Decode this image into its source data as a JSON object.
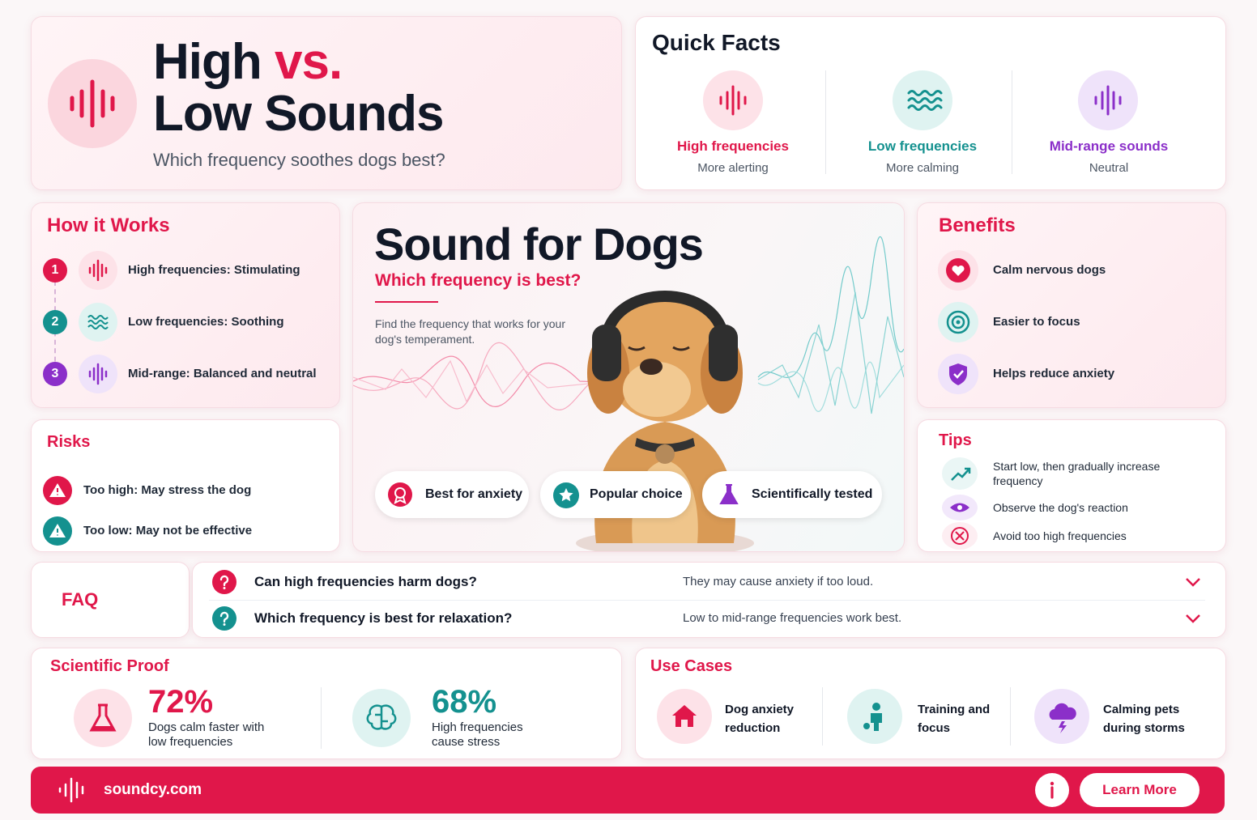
{
  "header": {
    "title_start": "High",
    "title_accent": "vs.",
    "title_end": "Low Sounds",
    "subtitle": "Which frequency soothes dogs best?"
  },
  "quick_facts": {
    "title": "Quick Facts",
    "items": [
      {
        "label": "High frequencies",
        "note": "More alerting"
      },
      {
        "label": "Low frequencies",
        "note": "More calming"
      },
      {
        "label": "Mid-range sounds",
        "note": "Neutral"
      }
    ]
  },
  "how_it_works": {
    "title": "How it Works",
    "steps": [
      {
        "number": 1,
        "text": "High frequencies: Stimulating"
      },
      {
        "number": 2,
        "text": "Low frequencies: Soothing"
      },
      {
        "number": 3,
        "text": "Mid-range: Balanced and neutral"
      }
    ]
  },
  "hero": {
    "title": "Sound for Dogs",
    "subtitle": "Which frequency is best?",
    "description": "Find the frequency that works for your dog's temperament.",
    "badges": [
      "Best for anxiety",
      "Popular choice",
      "Scientifically tested"
    ]
  },
  "benefits": {
    "title": "Benefits",
    "items": [
      "Calm nervous dogs",
      "Easier to focus",
      "Helps reduce anxiety"
    ]
  },
  "risks": {
    "title": "Risks",
    "items": [
      "Too high: May stress the dog",
      "Too low: May not be effective"
    ]
  },
  "tips": {
    "title": "Tips",
    "items": [
      "Start low, then gradually increase frequency",
      "Observe the dog's reaction",
      "Avoid too high frequencies"
    ]
  },
  "faq": {
    "title": "FAQ",
    "items": [
      {
        "question": "Can high frequencies harm dogs?",
        "answer": "They may cause anxiety if too loud."
      },
      {
        "question": "Which frequency is best for relaxation?",
        "answer": "Low to mid-range frequencies work best."
      }
    ]
  },
  "scientific_proof": {
    "title": "Scientific Proof",
    "stats": [
      {
        "value": "72%",
        "text": "Dogs calm faster with low frequencies"
      },
      {
        "value": "68%",
        "text": "High frequencies cause stress"
      }
    ]
  },
  "use_cases": {
    "title": "Use Cases",
    "items": [
      "Dog anxiety reduction",
      "Training and focus",
      "Calming pets during storms"
    ]
  },
  "footer": {
    "site": "soundcy.com",
    "button": "Learn More"
  }
}
